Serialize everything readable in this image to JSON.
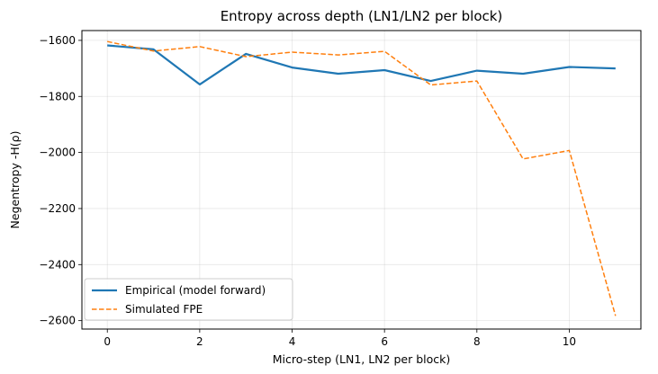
{
  "chart_data": {
    "type": "line",
    "title": "Entropy across depth (LN1/LN2 per block)",
    "xlabel": "Micro-step (LN1, LN2 per block)",
    "ylabel": "Negentropy -H(ρ)",
    "x": [
      0,
      1,
      2,
      3,
      4,
      5,
      6,
      7,
      8,
      9,
      10,
      11
    ],
    "xlim": [
      -0.55,
      11.55
    ],
    "ylim": [
      -2630,
      -1565
    ],
    "xticks": [
      0,
      2,
      4,
      6,
      8,
      10
    ],
    "xtick_labels": [
      "0",
      "2",
      "4",
      "6",
      "8",
      "10"
    ],
    "yticks": [
      -1600,
      -1800,
      -2000,
      -2200,
      -2400,
      -2600
    ],
    "ytick_labels": [
      "−1600",
      "−1800",
      "−2000",
      "−2200",
      "−2400",
      "−2600"
    ],
    "grid": true,
    "legend_position": "lower-left",
    "series": [
      {
        "name": "Empirical (model forward)",
        "style": "solid",
        "color": "#1f77b4",
        "values": [
          -1618,
          -1632,
          -1757,
          -1648,
          -1697,
          -1719,
          -1706,
          -1745,
          -1708,
          -1719,
          -1695,
          -1700
        ]
      },
      {
        "name": "Simulated FPE",
        "style": "dashed",
        "color": "#ff7f0e",
        "values": [
          -1604,
          -1638,
          -1622,
          -1658,
          -1642,
          -1652,
          -1639,
          -1759,
          -1745,
          -2023,
          -1993,
          -2583
        ]
      }
    ]
  }
}
